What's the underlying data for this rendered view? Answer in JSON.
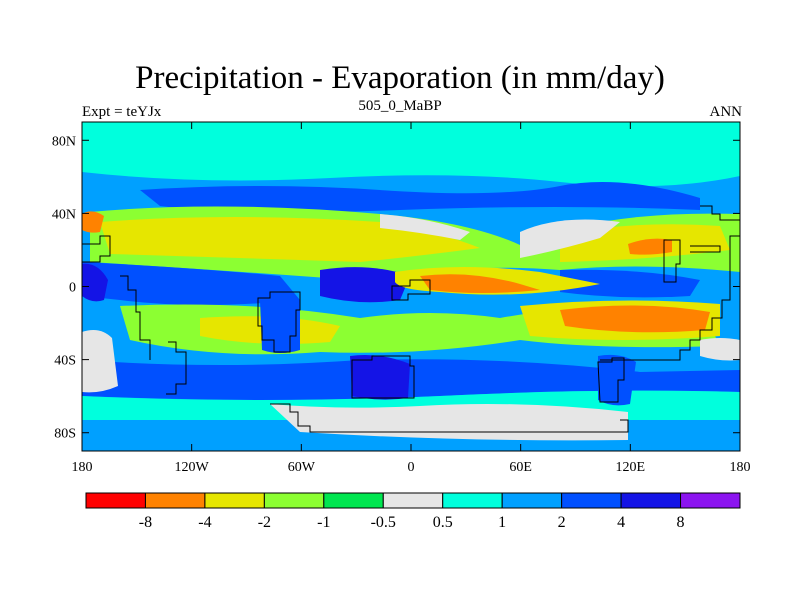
{
  "title": "Precipitation - Evaporation (in mm/day)",
  "subtitle_left": "Expt = teYJx",
  "subtitle_center": "505_0_MaBP",
  "subtitle_right": "ANN",
  "colors": {
    "ocean_high_lat": "#00ffdd",
    "ocean_mid": "#00a0ff",
    "land_gray": "#e6e6e6",
    "wet_blue": "#0050ff",
    "very_wet": "#1414e6",
    "dry_green": "#8cff32",
    "dry_bright_green": "#00e650",
    "dry_yellow": "#e6e600",
    "dry_orange": "#ff8200",
    "dry_red": "#ff0000"
  },
  "chart_data": {
    "type": "heatmap",
    "title": "Precipitation - Evaporation (in mm/day)",
    "x_ticks": [
      "180",
      "120W",
      "60W",
      "0",
      "60E",
      "120E",
      "180"
    ],
    "y_ticks": [
      "80N",
      "40N",
      "0",
      "40S",
      "80S"
    ],
    "xlim": [
      -180,
      180
    ],
    "ylim": [
      -90,
      90
    ],
    "colorbar": {
      "levels": [
        "-8",
        "-4",
        "-2",
        "-1",
        "-0.5",
        "0.5",
        "1",
        "2",
        "4",
        "8"
      ],
      "colors": [
        "#ff0000",
        "#ff8200",
        "#e6e600",
        "#8cff32",
        "#00e650",
        "#e6e6e6",
        "#00ffdd",
        "#00a0ff",
        "#0050ff",
        "#1414e6",
        "#8c14f0"
      ]
    }
  }
}
